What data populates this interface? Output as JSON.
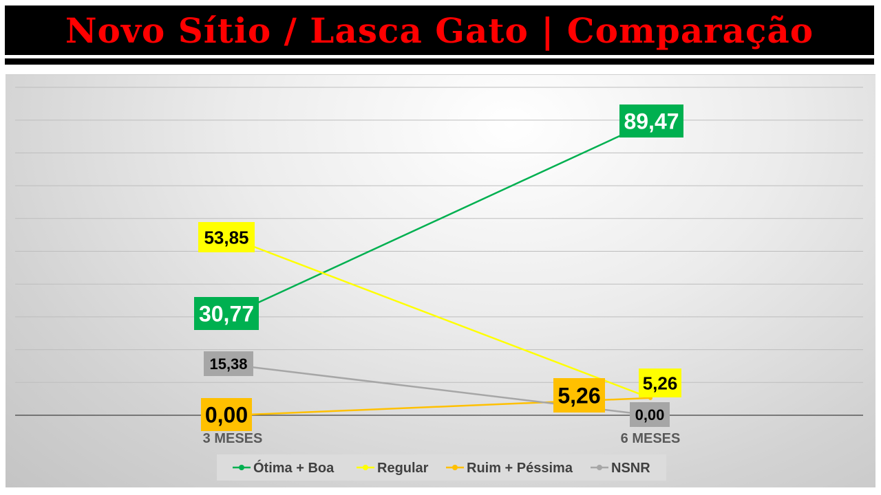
{
  "title": "Novo Sítio / Lasca Gato | Comparação",
  "chart_data": {
    "type": "line",
    "title": "Novo Sítio / Lasca Gato | Comparação",
    "categories": [
      "3 MESES",
      "6 MESES"
    ],
    "series": [
      {
        "name": "Ótima + Boa",
        "values": [
          30.77,
          89.47
        ],
        "labels": [
          "30,77",
          "89,47"
        ],
        "color": "#00b050",
        "label_bg": "#00b050",
        "label_color": "#ffffff"
      },
      {
        "name": "Regular",
        "values": [
          53.85,
          5.26
        ],
        "labels": [
          "53,85",
          "5,26"
        ],
        "color": "#ffff00",
        "label_bg": "#ffff00",
        "label_color": "#000000"
      },
      {
        "name": "Ruim + Péssima",
        "values": [
          0.0,
          5.26
        ],
        "labels": [
          "0,00",
          "5,26"
        ],
        "color": "#ffc000",
        "label_bg": "#ffc000",
        "label_color": "#000000"
      },
      {
        "name": "NSNR",
        "values": [
          15.38,
          0.0
        ],
        "labels": [
          "15,38",
          "0,00"
        ],
        "color": "#a6a6a6",
        "label_bg": "#a6a6a6",
        "label_color": "#000000"
      }
    ],
    "ylim": [
      0,
      100
    ],
    "grid": true,
    "legend": "bottom"
  }
}
